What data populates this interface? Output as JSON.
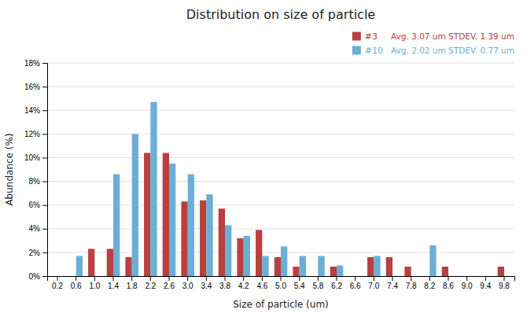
{
  "chart_data": {
    "type": "bar",
    "title": "Distribution on size of particle",
    "x_label": "Size of particle (um)",
    "y_label": "Abundance (%)",
    "categories": [
      "0.2",
      "0.6",
      "1.0",
      "1.4",
      "1.8",
      "2.2",
      "2.6",
      "3.0",
      "3.4",
      "3.8",
      "4.2",
      "4.6",
      "5.0",
      "5.4",
      "5.8",
      "6.2",
      "6.6",
      "7.0",
      "7.4",
      "7.8",
      "8.2",
      "8.6",
      "9.0",
      "9.4",
      "9.8"
    ],
    "series": [
      {
        "name": "#3",
        "color": "#b94040",
        "values": [
          0,
          0,
          2.3,
          2.3,
          1.6,
          10.4,
          10.4,
          6.3,
          6.4,
          5.7,
          3.2,
          3.9,
          1.6,
          0.8,
          0,
          0.8,
          0,
          1.6,
          1.6,
          0.8,
          0,
          0.8,
          0,
          0,
          0.8
        ]
      },
      {
        "name": "#10",
        "color": "#6baed6",
        "values": [
          0,
          1.7,
          0,
          8.6,
          12.0,
          14.7,
          9.5,
          8.6,
          6.9,
          4.3,
          3.4,
          1.7,
          2.5,
          1.7,
          1.7,
          0.9,
          0,
          1.7,
          0,
          0,
          2.6,
          0,
          0,
          0,
          0
        ]
      }
    ],
    "annotations": [
      "Avg. 3.07 um STDEV. 1.39 um",
      "Avg. 2.02 um STDEV. 0.77 um"
    ],
    "ylim": [
      0,
      18
    ],
    "yticks": [
      {
        "value": 0,
        "label": "0%"
      },
      {
        "value": 2,
        "label": "2%"
      },
      {
        "value": 4,
        "label": "4%"
      },
      {
        "value": 6,
        "label": "6%"
      },
      {
        "value": 8,
        "label": "8%"
      },
      {
        "value": 10,
        "label": "10%"
      },
      {
        "value": 12,
        "label": "12%"
      },
      {
        "value": 14,
        "label": "14%"
      },
      {
        "value": 16,
        "label": "16%"
      },
      {
        "value": 18,
        "label": "18%"
      }
    ],
    "grid": true,
    "legend": "upper right"
  }
}
